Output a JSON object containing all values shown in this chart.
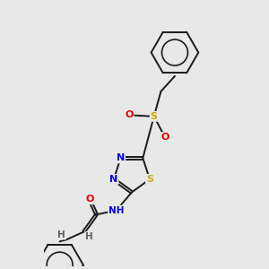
{
  "background_color": "#e8e8e8",
  "bond_color": "#1a1a1a",
  "atom_colors": {
    "N": "#0000ee",
    "S": "#ccaa00",
    "O": "#ee0000",
    "C": "#1a1a1a",
    "H": "#606060"
  },
  "figsize": [
    3.0,
    3.0
  ],
  "dpi": 100
}
